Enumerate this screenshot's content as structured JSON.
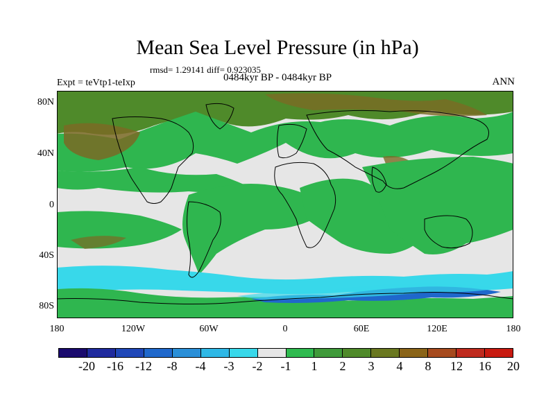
{
  "title": "Mean Sea Level Pressure (in hPa)",
  "stats": "rmsd= 1.29141 diff= 0.923035",
  "experiment": "Expt = teVtp1-teIxp",
  "period": "0484kyr BP - 0484kyr BP",
  "season": "ANN",
  "y_axis_labels": [
    "80N",
    "40N",
    "0",
    "40S",
    "80S"
  ],
  "x_axis_labels": [
    "180",
    "120W",
    "60W",
    "0",
    "60E",
    "120E",
    "180"
  ],
  "colorbar": {
    "colors": [
      "#1a0a6e",
      "#1f2a9e",
      "#1f47b8",
      "#1f68cc",
      "#2a8fd8",
      "#2eb8e6",
      "#38d8ea",
      "#e6e6e6",
      "#2fba4f",
      "#3f9a3a",
      "#4f8a2a",
      "#6a7820",
      "#8a6418",
      "#a64a1e",
      "#bf2a1e",
      "#c81a10"
    ],
    "labels": [
      "-20",
      "-16",
      "-12",
      "-8",
      "-4",
      "-3",
      "-2",
      "-1",
      "1",
      "2",
      "3",
      "4",
      "8",
      "12",
      "16",
      "20"
    ]
  },
  "map_colors": {
    "neutral": "#e6e6e6",
    "green": "#2fb64f",
    "dark_green": "#4f8a2a",
    "brown": "#7a6a24",
    "cyan": "#38d8ea",
    "blue": "#1f68cc",
    "coast": "#000000"
  }
}
